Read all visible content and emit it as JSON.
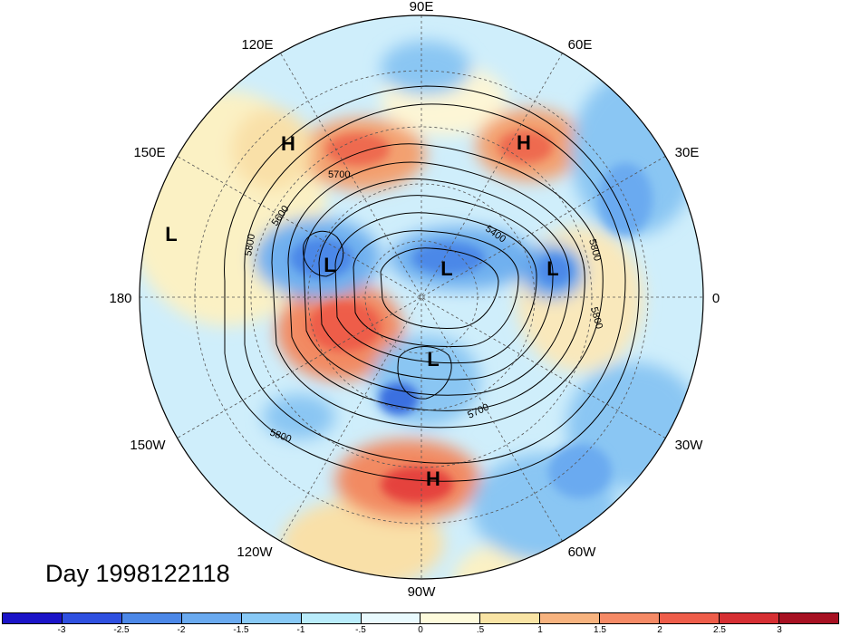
{
  "map": {
    "longitude_labels": [
      "90E",
      "60E",
      "30E",
      "0",
      "30W",
      "60W",
      "90W",
      "120W",
      "150W",
      "180",
      "150E",
      "120E"
    ],
    "pressure_centers": [
      {
        "type": "H",
        "label": "H"
      },
      {
        "type": "H",
        "label": "H"
      },
      {
        "type": "H",
        "label": "H"
      },
      {
        "type": "L",
        "label": "L"
      },
      {
        "type": "L",
        "label": "L"
      },
      {
        "type": "L",
        "label": "L"
      },
      {
        "type": "L",
        "label": "L"
      },
      {
        "type": "L",
        "label": "L"
      }
    ],
    "contour_labels": [
      "5700",
      "5600",
      "5800",
      "5400",
      "5800",
      "5800",
      "5700",
      "5800"
    ],
    "day_label": "Day 1998122118"
  },
  "colorbar": {
    "colors": [
      "#1b14c8",
      "#2f50e0",
      "#4c88e8",
      "#6aaaf0",
      "#88c9f6",
      "#b9ecfb",
      "#e9fafe",
      "#fefbdc",
      "#f9e4a5",
      "#f7b37f",
      "#f58a66",
      "#ee5d4a",
      "#d62f33",
      "#a71122"
    ],
    "tick_labels": [
      "-3",
      "-2.5",
      "-2",
      "-1.5",
      "-1",
      "-.5",
      "0",
      ".5",
      "1",
      "1.5",
      "2",
      "2.5",
      "3"
    ]
  }
}
